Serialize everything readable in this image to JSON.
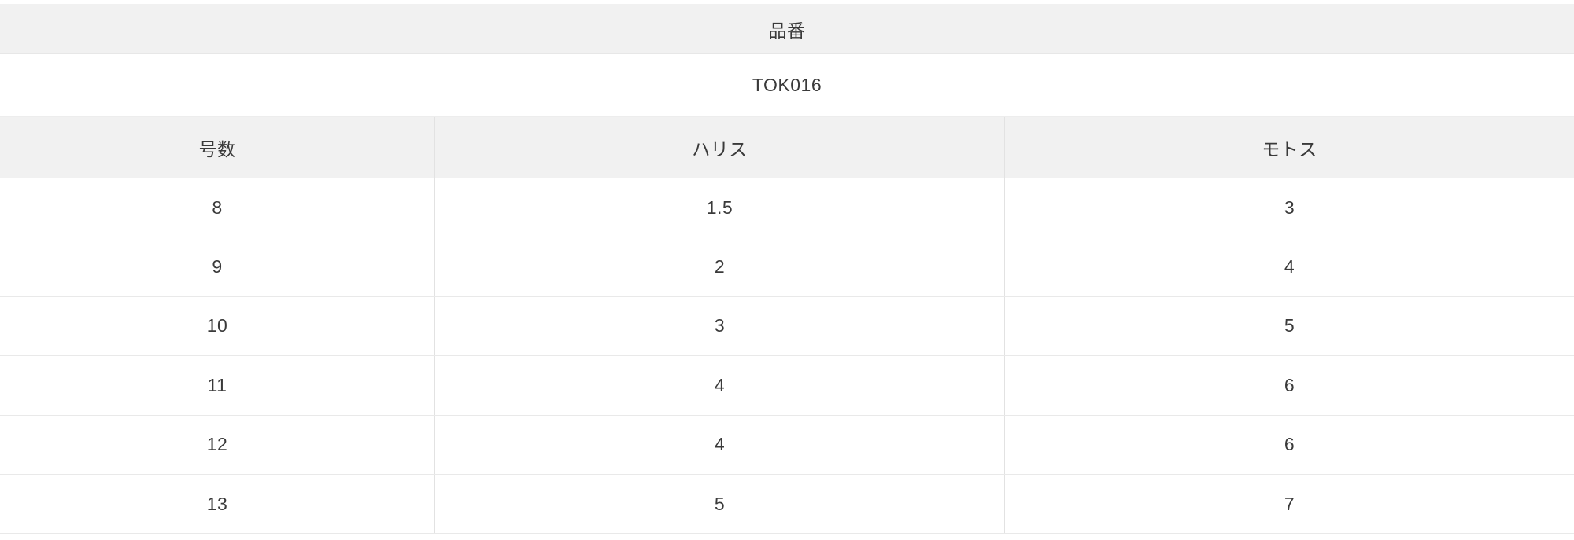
{
  "table": {
    "product_header_label": "品番",
    "product_code": "TOK016",
    "columns": [
      "号数",
      "ハリス",
      "モトス"
    ],
    "rows": [
      [
        "8",
        "1.5",
        "3"
      ],
      [
        "9",
        "2",
        "4"
      ],
      [
        "10",
        "3",
        "5"
      ],
      [
        "11",
        "4",
        "6"
      ],
      [
        "12",
        "4",
        "6"
      ],
      [
        "13",
        "5",
        "7"
      ]
    ]
  },
  "colors": {
    "band_background": "#f1f1f1",
    "row_divider": "#e9e9e9",
    "column_divider": "#e2e2e2",
    "text": "#3a3a3a",
    "page_background": "#ffffff"
  }
}
